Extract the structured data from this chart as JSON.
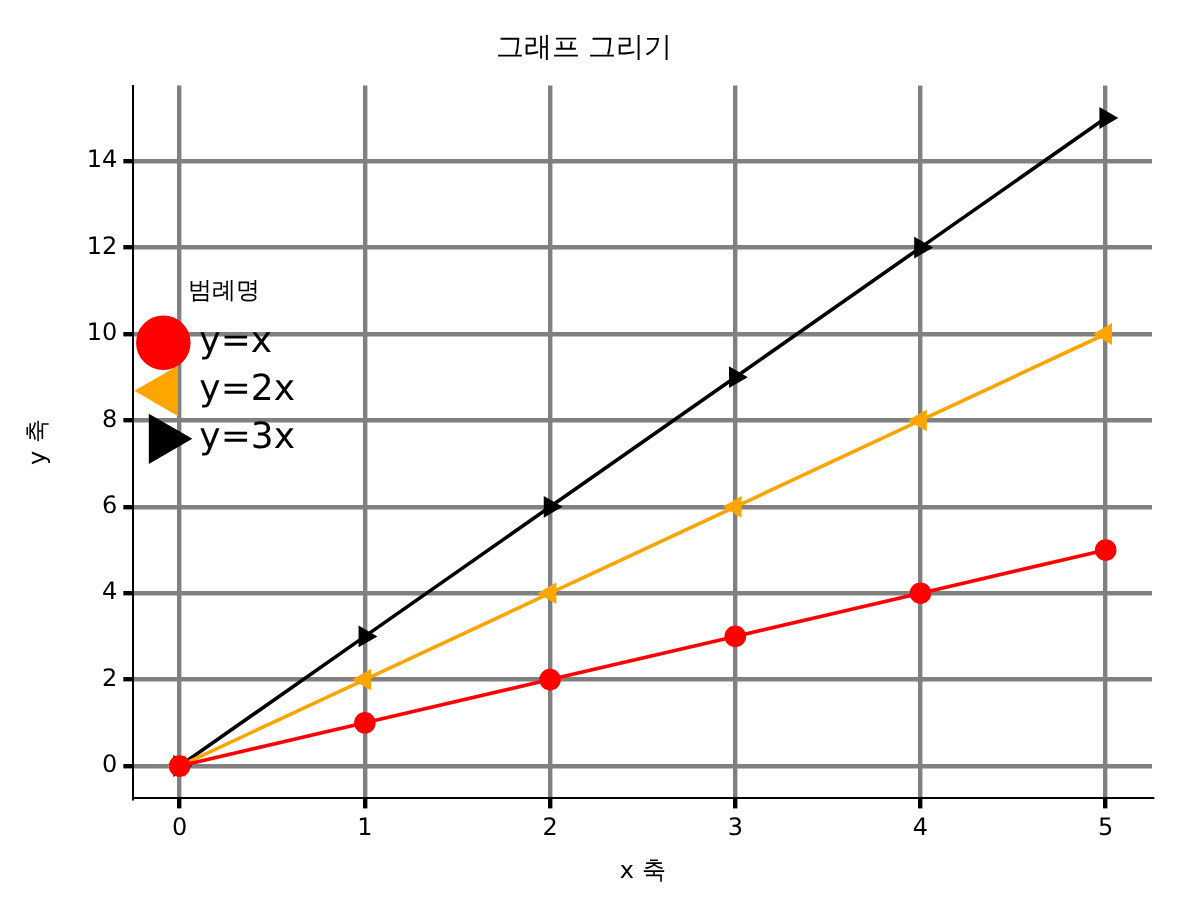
{
  "chart_data": {
    "type": "line",
    "title": "그래프 그리기",
    "xlabel": "x 축",
    "ylabel": "y 축",
    "legend_title": "범례명",
    "x": [
      0,
      1,
      2,
      3,
      4,
      5
    ],
    "series": [
      {
        "name": "y=x",
        "color": "#ff0000",
        "values": [
          0,
          1,
          2,
          3,
          4,
          5
        ],
        "marker": "circle"
      },
      {
        "name": "y=2x",
        "color": "#ffa500",
        "values": [
          0,
          2,
          4,
          6,
          8,
          10
        ],
        "marker": "triangle"
      },
      {
        "name": "y=3x",
        "color": "#000000",
        "values": [
          0,
          3,
          6,
          9,
          12,
          15
        ],
        "marker": "triangle"
      }
    ],
    "xlim": [
      -0.25,
      5.25
    ],
    "xticks": [
      0,
      1,
      2,
      3,
      4,
      5
    ],
    "ylim": [
      -0.75,
      15.75
    ],
    "yticks": [
      0,
      2,
      4,
      6,
      8,
      10,
      12,
      14
    ],
    "grid": true,
    "legend": "top",
    "line_style": "solid"
  }
}
